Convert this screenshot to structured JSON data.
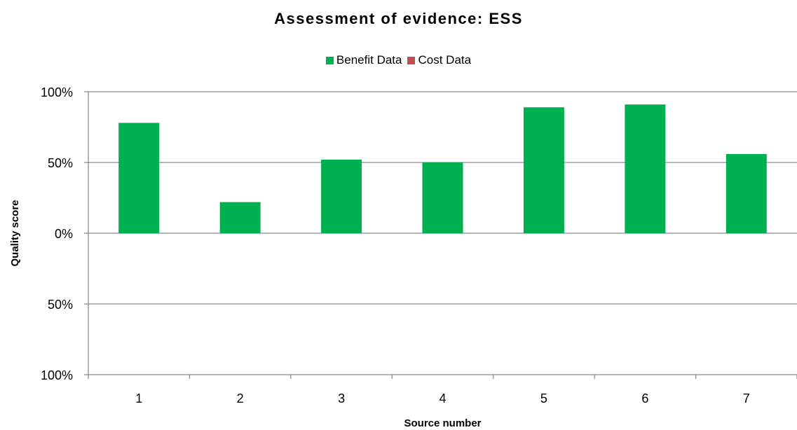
{
  "chart_data": {
    "type": "bar",
    "title": "Assessment of evidence: ESS",
    "xlabel": "Source number",
    "ylabel": "Quality score",
    "categories": [
      "1",
      "2",
      "3",
      "4",
      "5",
      "6",
      "7"
    ],
    "series": [
      {
        "name": "Benefit Data",
        "color": "#00b050",
        "values": [
          0.78,
          0.22,
          0.52,
          0.5,
          0.89,
          0.91,
          0.56
        ]
      },
      {
        "name": "Cost Data",
        "color": "#c0504d",
        "values": [
          0,
          0,
          0,
          0,
          0,
          0,
          0
        ]
      }
    ],
    "ylim": [
      -1,
      1
    ],
    "ytick_values": [
      1,
      0.5,
      0,
      -0.5,
      -1
    ],
    "ytick_labels": [
      "100%",
      "50%",
      "0%",
      "50%",
      "100%"
    ],
    "grid": true,
    "legend_position": "top-center"
  }
}
